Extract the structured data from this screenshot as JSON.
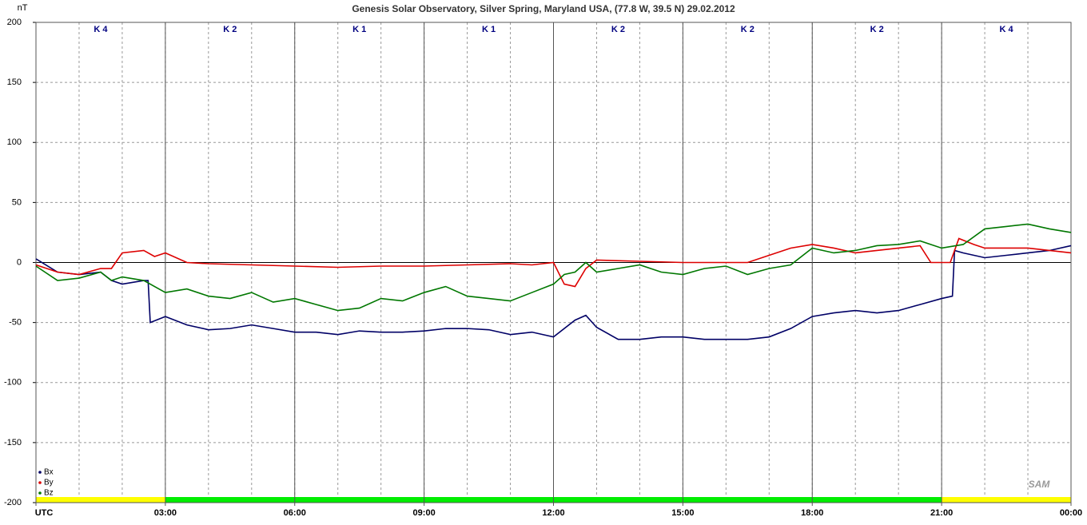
{
  "chart_data": {
    "type": "line",
    "title": "Genesis Solar Observatory, Silver Spring, Maryland USA, (77.8 W, 39.5 N)  29.02.2012",
    "y_label": "nT",
    "xlim": [
      0,
      24
    ],
    "xticks": [
      {
        "value": 0,
        "label": "UTC"
      },
      {
        "value": 3,
        "label": "03:00"
      },
      {
        "value": 6,
        "label": "06:00"
      },
      {
        "value": 9,
        "label": "09:00"
      },
      {
        "value": 12,
        "label": "12:00"
      },
      {
        "value": 15,
        "label": "15:00"
      },
      {
        "value": 18,
        "label": "18:00"
      },
      {
        "value": 21,
        "label": "21:00"
      },
      {
        "value": 24,
        "label": "00:00"
      }
    ],
    "minor_grid_step": 1,
    "ylim": [
      -200,
      200
    ],
    "yticks": [
      -200,
      -150,
      -100,
      -50,
      0,
      50,
      100,
      150,
      200
    ],
    "grid": true,
    "legend": "lower-left",
    "k_labels": [
      "K 4",
      "K 2",
      "K 1",
      "K 1",
      "K 2",
      "K 2",
      "K 2",
      "K 4"
    ],
    "k_colors": [
      "#ffff00",
      "#00ee00",
      "#00ee00",
      "#00ee00",
      "#00ee00",
      "#00ee00",
      "#00ee00",
      "#ffff00"
    ],
    "logo": "SAM",
    "series": [
      {
        "name": "Bx",
        "color": "#000066",
        "x": [
          0,
          0.5,
          1,
          1.5,
          1.75,
          2,
          2.5,
          2.6,
          2.65,
          3,
          3.5,
          4,
          4.5,
          5,
          5.5,
          6,
          6.5,
          7,
          7.5,
          8,
          8.5,
          9,
          9.5,
          10,
          10.5,
          11,
          11.5,
          12,
          12.5,
          12.75,
          13,
          13.5,
          14,
          14.5,
          15,
          15.5,
          16,
          16.5,
          17,
          17.5,
          18,
          18.5,
          19,
          19.5,
          20,
          20.5,
          21,
          21.25,
          21.3,
          21.5,
          22,
          22.5,
          23,
          23.5,
          24
        ],
        "values": [
          3,
          -8,
          -10,
          -8,
          -15,
          -18,
          -15,
          -15,
          -50,
          -45,
          -52,
          -56,
          -55,
          -52,
          -55,
          -58,
          -58,
          -60,
          -57,
          -58,
          -58,
          -57,
          -55,
          -55,
          -56,
          -60,
          -58,
          -62,
          -48,
          -44,
          -54,
          -64,
          -64,
          -62,
          -62,
          -64,
          -64,
          -64,
          -62,
          -55,
          -45,
          -42,
          -40,
          -42,
          -40,
          -35,
          -30,
          -28,
          10,
          8,
          4,
          6,
          8,
          10,
          14
        ]
      },
      {
        "name": "By",
        "color": "#dd0000",
        "x": [
          0,
          0.5,
          1,
          1.5,
          1.75,
          2,
          2.5,
          2.75,
          3,
          3.5,
          4,
          5,
          6,
          7,
          8,
          9,
          10,
          11,
          11.5,
          12,
          12.25,
          12.5,
          12.75,
          13,
          14,
          15,
          16,
          16.5,
          17,
          17.5,
          18,
          18.5,
          19,
          19.5,
          20,
          20.5,
          20.75,
          21,
          21.2,
          21.4,
          21.75,
          22,
          23,
          23.5,
          24
        ],
        "values": [
          -2,
          -8,
          -10,
          -5,
          -5,
          8,
          10,
          5,
          8,
          0,
          -1,
          -2,
          -3,
          -4,
          -3,
          -3,
          -2,
          -1,
          -2,
          0,
          -18,
          -20,
          -5,
          2,
          1,
          0,
          0,
          0,
          6,
          12,
          15,
          12,
          8,
          10,
          12,
          14,
          0,
          0,
          0,
          20,
          15,
          12,
          12,
          10,
          8
        ]
      },
      {
        "name": "Bz",
        "color": "#007700",
        "x": [
          0,
          0.5,
          1,
          1.5,
          1.75,
          2,
          2.5,
          3,
          3.5,
          4,
          4.5,
          5,
          5.5,
          6,
          6.5,
          7,
          7.5,
          8,
          8.5,
          9,
          9.5,
          10,
          10.5,
          11,
          11.5,
          12,
          12.25,
          12.5,
          12.75,
          13,
          13.5,
          14,
          14.5,
          15,
          15.5,
          16,
          16.5,
          17,
          17.5,
          18,
          18.5,
          19,
          19.5,
          20,
          20.5,
          21,
          21.5,
          22,
          22.5,
          23,
          23.5,
          24
        ],
        "values": [
          -3,
          -15,
          -13,
          -8,
          -15,
          -12,
          -15,
          -25,
          -22,
          -28,
          -30,
          -25,
          -33,
          -30,
          -35,
          -40,
          -38,
          -30,
          -32,
          -25,
          -20,
          -28,
          -30,
          -32,
          -25,
          -18,
          -10,
          -8,
          0,
          -8,
          -5,
          -2,
          -8,
          -10,
          -5,
          -3,
          -10,
          -5,
          -2,
          12,
          8,
          10,
          14,
          15,
          18,
          12,
          15,
          28,
          30,
          32,
          28,
          25
        ]
      }
    ]
  }
}
